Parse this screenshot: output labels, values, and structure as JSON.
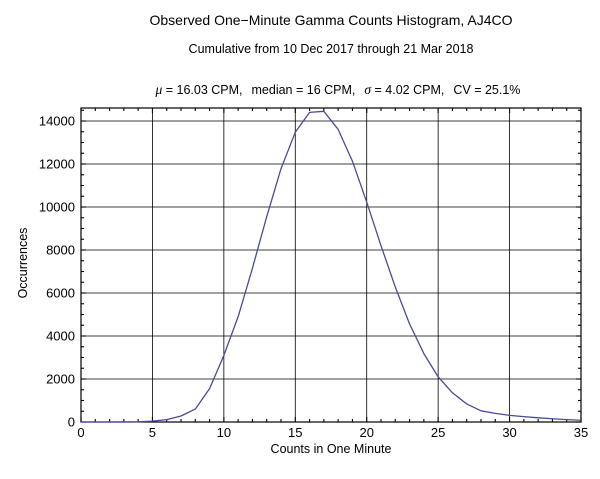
{
  "chart_data": {
    "type": "line",
    "title": "Observed One−Minute Gamma Counts Histogram, AJ4CO",
    "subtitle": "Cumulative from 10 Dec 2017 through 21 Mar 2018",
    "stats": {
      "mu_symbol": "μ",
      "mu": " = 16.03 CPM,",
      "median": "median = 16 CPM,",
      "sigma_symbol": "σ",
      "sigma": " = 4.02 CPM,",
      "cv": "CV = 25.1%"
    },
    "xlabel": "Counts in One Minute",
    "ylabel": "Occurrences",
    "xlim": [
      0,
      35
    ],
    "ylim": [
      0,
      14605
    ],
    "xticks": [
      0,
      5,
      10,
      15,
      20,
      25,
      30,
      35
    ],
    "yticks": [
      0,
      2000,
      4000,
      6000,
      8000,
      10000,
      12000,
      14000
    ],
    "x_minor_step": 1,
    "y_minor_step": 500,
    "grid": true,
    "legend_position": "none",
    "line_color": "#4a4a9b",
    "frame_color": "#000000",
    "x": [
      0,
      1,
      2,
      3,
      4,
      5,
      6,
      7,
      8,
      9,
      10,
      11,
      12,
      13,
      14,
      15,
      16,
      17,
      18,
      19,
      20,
      21,
      22,
      23,
      24,
      25,
      26,
      27,
      28,
      29,
      30,
      31,
      32,
      33,
      34,
      35
    ],
    "y": [
      0,
      0,
      0,
      2,
      10,
      40,
      110,
      280,
      600,
      1550,
      3100,
      4900,
      7150,
      9550,
      11780,
      13480,
      14400,
      14450,
      13610,
      12130,
      10230,
      8200,
      6280,
      4560,
      3180,
      2100,
      1360,
      840,
      520,
      400,
      310,
      250,
      195,
      150,
      110,
      80
    ]
  }
}
